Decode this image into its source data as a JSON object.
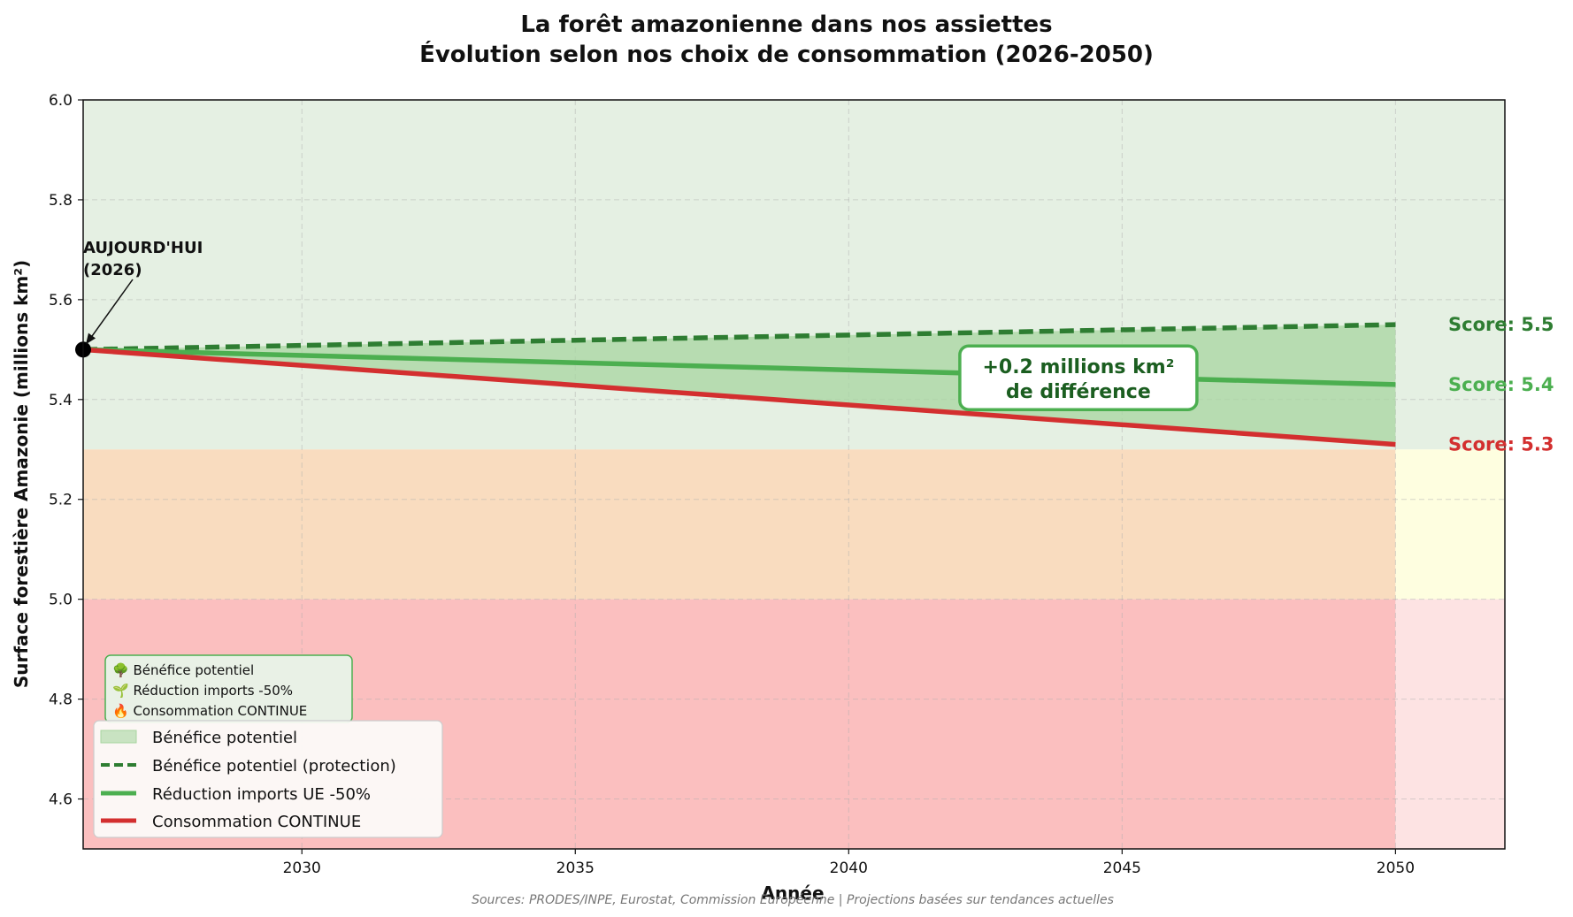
{
  "chart_data": {
    "type": "line",
    "title_line1": "La forêt amazonienne dans nos assiettes",
    "title_line2": "Évolution selon nos choix de consommation (2026-2050)",
    "xlabel": "Année",
    "ylabel": "Surface forestière Amazonie (millions km²)",
    "xlim": [
      2026,
      2052
    ],
    "ylim": [
      4.5,
      6.0
    ],
    "x_ticks": [
      2030,
      2035,
      2040,
      2045,
      2050
    ],
    "y_ticks": [
      4.6,
      4.8,
      5.0,
      5.2,
      5.4,
      5.6,
      5.8,
      6.0
    ],
    "grid": true,
    "zones": [
      {
        "name": "healthy",
        "from": 5.3,
        "to": 6.0,
        "color": "#e5f0e3",
        "edge_color": "#e5f0e3"
      },
      {
        "name": "warning",
        "from": 5.0,
        "to": 5.3,
        "color": "#f9dcbf",
        "edge_color": "#fefee0"
      },
      {
        "name": "critical",
        "from": 4.5,
        "to": 5.0,
        "color": "#fbbfbf",
        "edge_color": "#fde3e3"
      }
    ],
    "series": [
      {
        "name": "Bénéfice potentiel (protection)",
        "color": "#2e7d32",
        "dashed": true,
        "x": [
          2026,
          2050
        ],
        "values": [
          5.5,
          5.55
        ]
      },
      {
        "name": "Réduction imports UE -50%",
        "color": "#4caf50",
        "dashed": false,
        "x": [
          2026,
          2050
        ],
        "values": [
          5.5,
          5.43
        ]
      },
      {
        "name": "Consommation CONTINUE",
        "color": "#d32f2f",
        "dashed": false,
        "x": [
          2026,
          2050
        ],
        "values": [
          5.5,
          5.31
        ]
      }
    ],
    "fill": {
      "name": "Bénéfice potentiel",
      "color": "#a7d5a0",
      "between": [
        "Bénéfice potentiel (protection)",
        "Consommation CONTINUE"
      ]
    },
    "today_point": {
      "x": 2026,
      "y": 5.5,
      "label_line1": "AUJOURD'HUI",
      "label_line2": "(2026)"
    },
    "score_labels": [
      {
        "text": "Score: 5.5",
        "y": 5.55,
        "color": "#2e7d32"
      },
      {
        "text": "Score: 5.4",
        "y": 5.43,
        "color": "#4caf50"
      },
      {
        "text": "Score: 5.3",
        "y": 5.31,
        "color": "#d32f2f"
      }
    ],
    "difference_box": {
      "line1": "+0.2 millions km²",
      "line2": "de différence",
      "x": 2044.2,
      "y": 5.44,
      "color": "#1b5e20",
      "border": "#4caf50"
    },
    "note_box": {
      "lines": [
        "🌳 Bénéfice potentiel",
        "🌱 Réduction imports -50%",
        "🔥 Consommation CONTINUE"
      ]
    },
    "legend": {
      "placement": "lower-left",
      "entries": [
        "Bénéfice potentiel",
        "Bénéfice potentiel (protection)",
        "Réduction imports UE -50%",
        "Consommation CONTINUE"
      ]
    },
    "source": "Sources: PRODES/INPE, Eurostat, Commission Européenne | Projections basées sur tendances actuelles"
  }
}
